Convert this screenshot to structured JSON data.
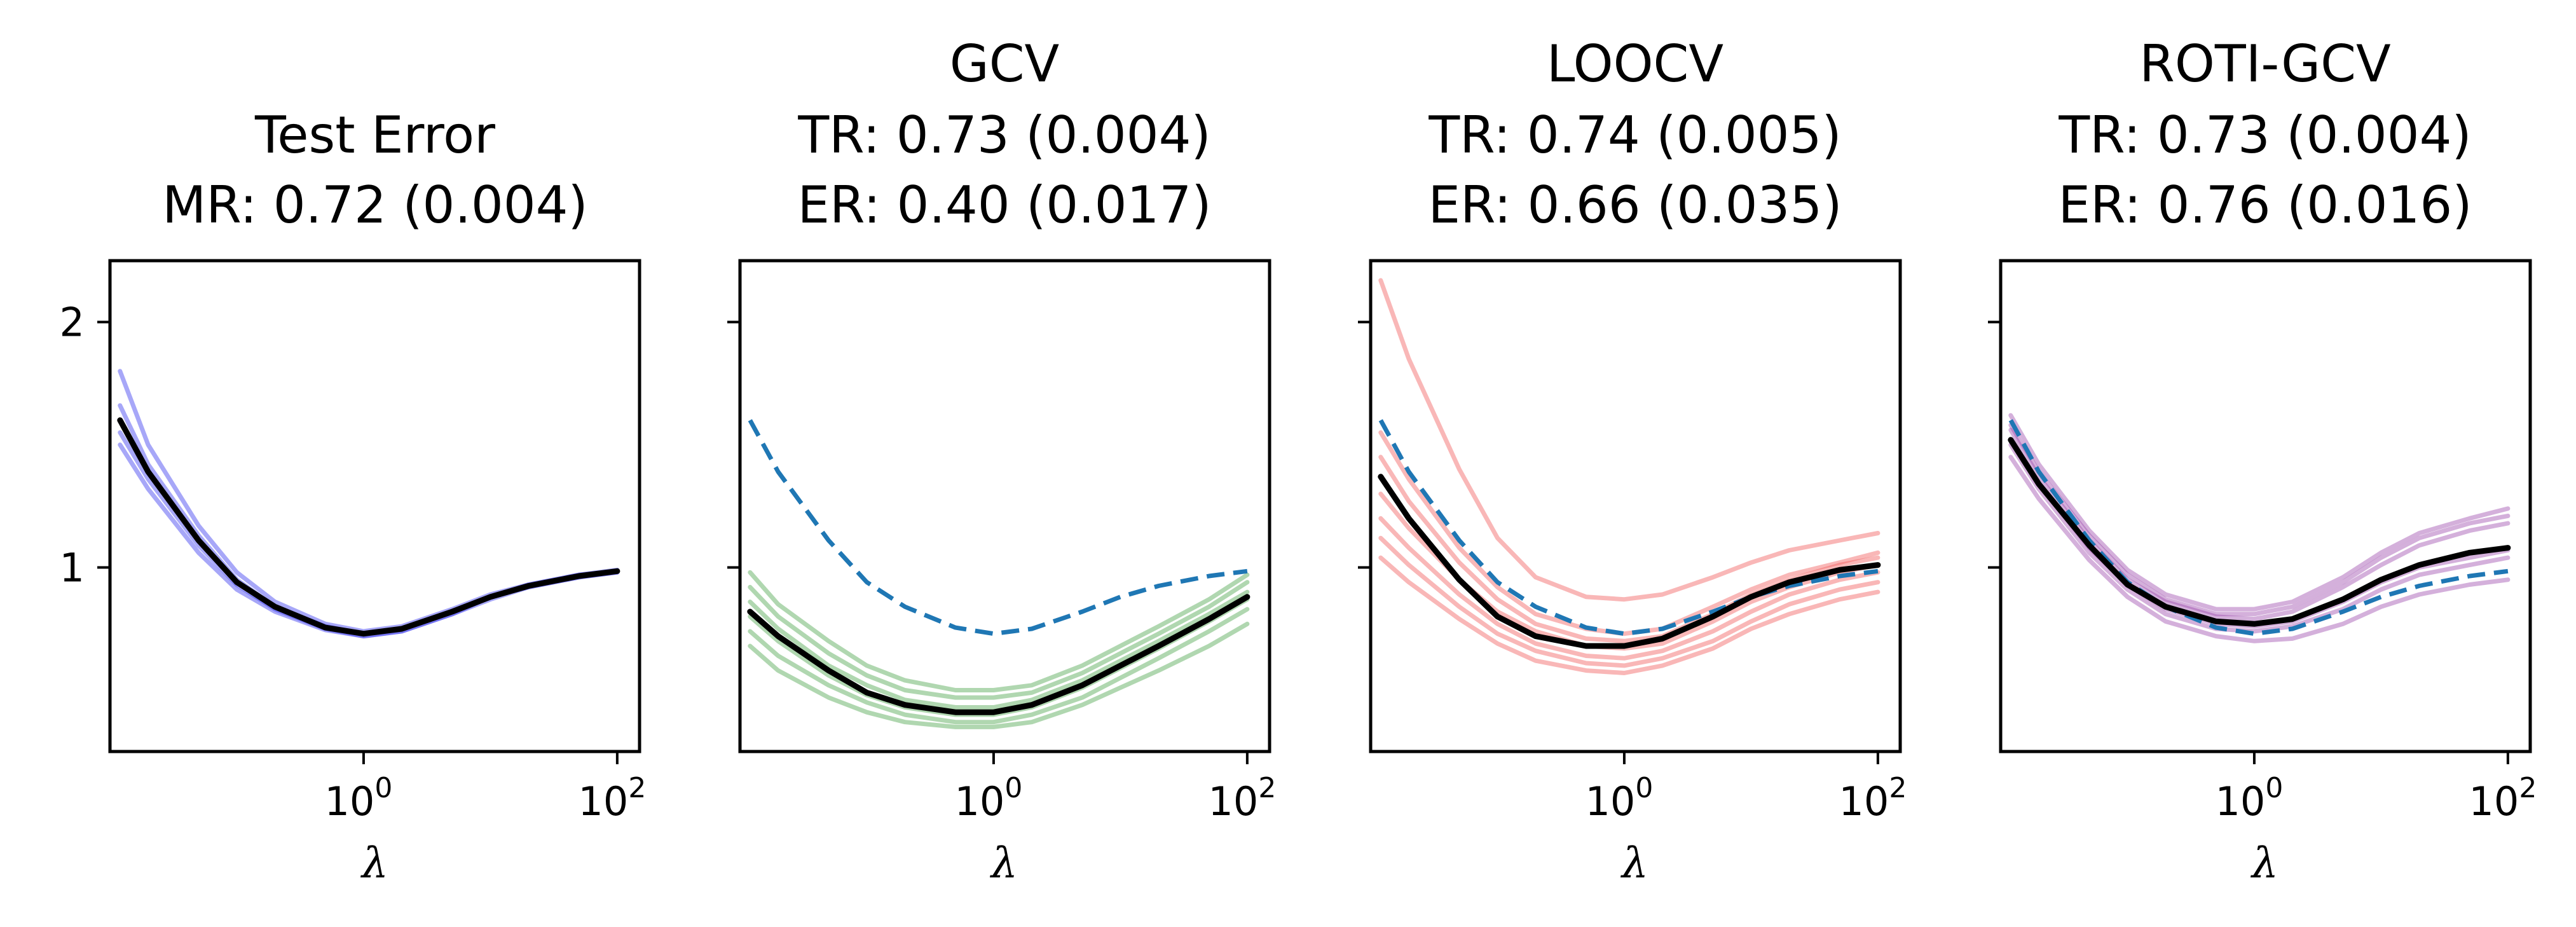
{
  "chart_data": [
    {
      "type": "line",
      "title": [
        "Test Error",
        "MR: 0.72 (0.004)"
      ],
      "xlabel": "λ",
      "xscale": "log",
      "xlim": [
        0.01,
        150
      ],
      "ylim": [
        0.25,
        2.25
      ],
      "xticks": [
        {
          "value": 1,
          "base": "10",
          "exp": "0"
        },
        {
          "value": 100,
          "base": "10",
          "exp": "2"
        }
      ],
      "yticks": [
        {
          "value": 1,
          "label": "1"
        },
        {
          "value": 2,
          "label": "2"
        }
      ],
      "show_ytick_labels": true,
      "x": [
        0.012,
        0.02,
        0.05,
        0.1,
        0.2,
        0.5,
        1,
        2,
        5,
        10,
        20,
        50,
        100
      ],
      "series": [
        {
          "name": "trial",
          "color": "#3b3bf0",
          "opacity": 0.45,
          "values": [
            1.8,
            1.5,
            1.17,
            0.98,
            0.86,
            0.77,
            0.74,
            0.76,
            0.83,
            0.89,
            0.93,
            0.97,
            0.99
          ]
        },
        {
          "name": "trial",
          "color": "#3b3bf0",
          "opacity": 0.45,
          "values": [
            1.66,
            1.42,
            1.13,
            0.95,
            0.84,
            0.76,
            0.73,
            0.75,
            0.82,
            0.88,
            0.93,
            0.97,
            0.985
          ]
        },
        {
          "name": "trial",
          "color": "#3b3bf0",
          "opacity": 0.45,
          "values": [
            1.55,
            1.36,
            1.09,
            0.93,
            0.83,
            0.75,
            0.72,
            0.74,
            0.81,
            0.88,
            0.92,
            0.96,
            0.98
          ]
        },
        {
          "name": "trial",
          "color": "#3b3bf0",
          "opacity": 0.45,
          "values": [
            1.5,
            1.32,
            1.06,
            0.91,
            0.82,
            0.745,
            0.72,
            0.74,
            0.81,
            0.87,
            0.92,
            0.96,
            0.98
          ]
        },
        {
          "name": "average",
          "color": "#000000",
          "opacity": 1,
          "values": [
            1.6,
            1.39,
            1.11,
            0.94,
            0.84,
            0.755,
            0.73,
            0.75,
            0.82,
            0.88,
            0.925,
            0.965,
            0.985
          ]
        }
      ]
    },
    {
      "type": "line",
      "title": [
        "GCV",
        "TR: 0.73 (0.004)",
        "ER: 0.40 (0.017)"
      ],
      "xlabel": "λ",
      "xscale": "log",
      "xlim": [
        0.01,
        150
      ],
      "ylim": [
        0.25,
        2.25
      ],
      "xticks": [
        {
          "value": 1,
          "base": "10",
          "exp": "0"
        },
        {
          "value": 100,
          "base": "10",
          "exp": "2"
        }
      ],
      "yticks": [
        {
          "value": 1,
          "label": "1"
        },
        {
          "value": 2,
          "label": "2"
        }
      ],
      "show_ytick_labels": false,
      "x": [
        0.012,
        0.02,
        0.05,
        0.1,
        0.2,
        0.5,
        1,
        2,
        5,
        10,
        20,
        50,
        100
      ],
      "series": [
        {
          "name": "trial",
          "color": "#3a9a3a",
          "opacity": 0.4,
          "values": [
            0.98,
            0.85,
            0.7,
            0.6,
            0.54,
            0.5,
            0.5,
            0.52,
            0.6,
            0.68,
            0.76,
            0.87,
            0.97
          ]
        },
        {
          "name": "trial",
          "color": "#3a9a3a",
          "opacity": 0.4,
          "values": [
            0.92,
            0.8,
            0.65,
            0.56,
            0.5,
            0.47,
            0.47,
            0.49,
            0.57,
            0.65,
            0.73,
            0.84,
            0.94
          ]
        },
        {
          "name": "trial",
          "color": "#3a9a3a",
          "opacity": 0.4,
          "values": [
            0.86,
            0.75,
            0.6,
            0.52,
            0.46,
            0.43,
            0.43,
            0.46,
            0.54,
            0.62,
            0.7,
            0.81,
            0.9
          ]
        },
        {
          "name": "trial",
          "color": "#3a9a3a",
          "opacity": 0.4,
          "values": [
            0.8,
            0.7,
            0.56,
            0.48,
            0.43,
            0.4,
            0.4,
            0.43,
            0.51,
            0.59,
            0.67,
            0.78,
            0.87
          ]
        },
        {
          "name": "trial",
          "color": "#3a9a3a",
          "opacity": 0.4,
          "values": [
            0.74,
            0.64,
            0.52,
            0.45,
            0.4,
            0.37,
            0.37,
            0.4,
            0.47,
            0.55,
            0.63,
            0.74,
            0.83
          ]
        },
        {
          "name": "trial",
          "color": "#3a9a3a",
          "opacity": 0.4,
          "values": [
            0.68,
            0.58,
            0.47,
            0.41,
            0.37,
            0.35,
            0.35,
            0.37,
            0.44,
            0.51,
            0.58,
            0.68,
            0.77
          ]
        },
        {
          "name": "test error",
          "color": "#1f77b4",
          "opacity": 1,
          "dashed": true,
          "values": [
            1.6,
            1.39,
            1.11,
            0.94,
            0.84,
            0.755,
            0.73,
            0.75,
            0.82,
            0.88,
            0.925,
            0.965,
            0.985
          ]
        },
        {
          "name": "average",
          "color": "#000000",
          "opacity": 1,
          "values": [
            0.82,
            0.72,
            0.58,
            0.49,
            0.44,
            0.41,
            0.41,
            0.44,
            0.52,
            0.6,
            0.68,
            0.79,
            0.88
          ]
        }
      ]
    },
    {
      "type": "line",
      "title": [
        "LOOCV",
        "TR: 0.74 (0.005)",
        "ER: 0.66 (0.035)"
      ],
      "xlabel": "λ",
      "xscale": "log",
      "xlim": [
        0.01,
        150
      ],
      "ylim": [
        0.25,
        2.25
      ],
      "xticks": [
        {
          "value": 1,
          "base": "10",
          "exp": "0"
        },
        {
          "value": 100,
          "base": "10",
          "exp": "2"
        }
      ],
      "yticks": [
        {
          "value": 1,
          "label": "1"
        },
        {
          "value": 2,
          "label": "2"
        }
      ],
      "show_ytick_labels": false,
      "x": [
        0.012,
        0.02,
        0.05,
        0.1,
        0.2,
        0.5,
        1,
        2,
        5,
        10,
        20,
        50,
        100
      ],
      "series": [
        {
          "name": "trial",
          "color": "#f26060",
          "opacity": 0.45,
          "values": [
            2.17,
            1.85,
            1.4,
            1.12,
            0.96,
            0.88,
            0.87,
            0.89,
            0.96,
            1.02,
            1.07,
            1.11,
            1.14
          ]
        },
        {
          "name": "trial",
          "color": "#f26060",
          "opacity": 0.45,
          "values": [
            1.55,
            1.36,
            1.08,
            0.92,
            0.81,
            0.75,
            0.73,
            0.75,
            0.84,
            0.91,
            0.97,
            1.02,
            1.06
          ]
        },
        {
          "name": "trial",
          "color": "#f26060",
          "opacity": 0.45,
          "values": [
            1.45,
            1.27,
            1.02,
            0.87,
            0.77,
            0.71,
            0.7,
            0.72,
            0.81,
            0.89,
            0.95,
            1.01,
            1.04
          ]
        },
        {
          "name": "trial",
          "color": "#f26060",
          "opacity": 0.45,
          "values": [
            1.3,
            1.16,
            0.95,
            0.82,
            0.74,
            0.68,
            0.67,
            0.69,
            0.78,
            0.86,
            0.92,
            0.98,
            1.01
          ]
        },
        {
          "name": "trial",
          "color": "#f26060",
          "opacity": 0.45,
          "values": [
            1.2,
            1.08,
            0.89,
            0.77,
            0.69,
            0.64,
            0.63,
            0.66,
            0.74,
            0.82,
            0.89,
            0.95,
            0.98
          ]
        },
        {
          "name": "trial",
          "color": "#f26060",
          "opacity": 0.45,
          "values": [
            1.12,
            1.01,
            0.84,
            0.73,
            0.66,
            0.61,
            0.6,
            0.63,
            0.7,
            0.78,
            0.85,
            0.91,
            0.94
          ]
        },
        {
          "name": "trial",
          "color": "#f26060",
          "opacity": 0.45,
          "values": [
            1.04,
            0.94,
            0.79,
            0.69,
            0.62,
            0.58,
            0.57,
            0.6,
            0.67,
            0.75,
            0.81,
            0.87,
            0.9
          ]
        },
        {
          "name": "test error",
          "color": "#1f77b4",
          "opacity": 1,
          "dashed": true,
          "values": [
            1.6,
            1.39,
            1.11,
            0.94,
            0.84,
            0.755,
            0.73,
            0.75,
            0.82,
            0.88,
            0.925,
            0.965,
            0.985
          ]
        },
        {
          "name": "average",
          "color": "#000000",
          "opacity": 1,
          "values": [
            1.37,
            1.2,
            0.95,
            0.8,
            0.72,
            0.68,
            0.68,
            0.71,
            0.8,
            0.88,
            0.94,
            0.99,
            1.01
          ]
        }
      ]
    },
    {
      "type": "line",
      "title": [
        "ROTI-GCV",
        "TR: 0.73 (0.004)",
        "ER: 0.76 (0.016)"
      ],
      "xlabel": "λ",
      "xscale": "log",
      "xlim": [
        0.01,
        150
      ],
      "ylim": [
        0.25,
        2.25
      ],
      "xticks": [
        {
          "value": 1,
          "base": "10",
          "exp": "0"
        },
        {
          "value": 100,
          "base": "10",
          "exp": "2"
        }
      ],
      "yticks": [
        {
          "value": 1,
          "label": "1"
        },
        {
          "value": 2,
          "label": "2"
        }
      ],
      "show_ytick_labels": false,
      "x": [
        0.012,
        0.02,
        0.05,
        0.1,
        0.2,
        0.5,
        1,
        2,
        5,
        10,
        20,
        50,
        100
      ],
      "series": [
        {
          "name": "trial",
          "color": "#a050b0",
          "opacity": 0.45,
          "values": [
            1.62,
            1.42,
            1.15,
            0.99,
            0.89,
            0.83,
            0.83,
            0.86,
            0.96,
            1.06,
            1.14,
            1.2,
            1.24
          ]
        },
        {
          "name": "trial",
          "color": "#a050b0",
          "opacity": 0.45,
          "values": [
            1.58,
            1.39,
            1.13,
            0.97,
            0.87,
            0.81,
            0.81,
            0.84,
            0.94,
            1.04,
            1.12,
            1.18,
            1.21
          ]
        },
        {
          "name": "trial",
          "color": "#a050b0",
          "opacity": 0.45,
          "values": [
            1.56,
            1.37,
            1.11,
            0.95,
            0.86,
            0.8,
            0.79,
            0.82,
            0.92,
            1.01,
            1.09,
            1.15,
            1.18
          ]
        },
        {
          "name": "trial",
          "color": "#a050b0",
          "opacity": 0.45,
          "values": [
            1.52,
            1.34,
            1.08,
            0.93,
            0.83,
            0.77,
            0.76,
            0.78,
            0.86,
            0.94,
            1.0,
            1.04,
            1.07
          ]
        },
        {
          "name": "trial",
          "color": "#a050b0",
          "opacity": 0.45,
          "values": [
            1.5,
            1.32,
            1.06,
            0.91,
            0.81,
            0.75,
            0.74,
            0.76,
            0.83,
            0.91,
            0.97,
            1.01,
            1.04
          ]
        },
        {
          "name": "trial",
          "color": "#a050b0",
          "opacity": 0.45,
          "values": [
            1.45,
            1.28,
            1.03,
            0.88,
            0.78,
            0.72,
            0.7,
            0.71,
            0.77,
            0.84,
            0.89,
            0.93,
            0.95
          ]
        },
        {
          "name": "test error",
          "color": "#1f77b4",
          "opacity": 1,
          "dashed": true,
          "values": [
            1.6,
            1.39,
            1.11,
            0.94,
            0.84,
            0.755,
            0.73,
            0.75,
            0.82,
            0.88,
            0.925,
            0.965,
            0.985
          ]
        },
        {
          "name": "average",
          "color": "#000000",
          "opacity": 1,
          "values": [
            1.52,
            1.34,
            1.09,
            0.93,
            0.84,
            0.78,
            0.77,
            0.79,
            0.87,
            0.95,
            1.01,
            1.06,
            1.08
          ]
        }
      ]
    }
  ]
}
